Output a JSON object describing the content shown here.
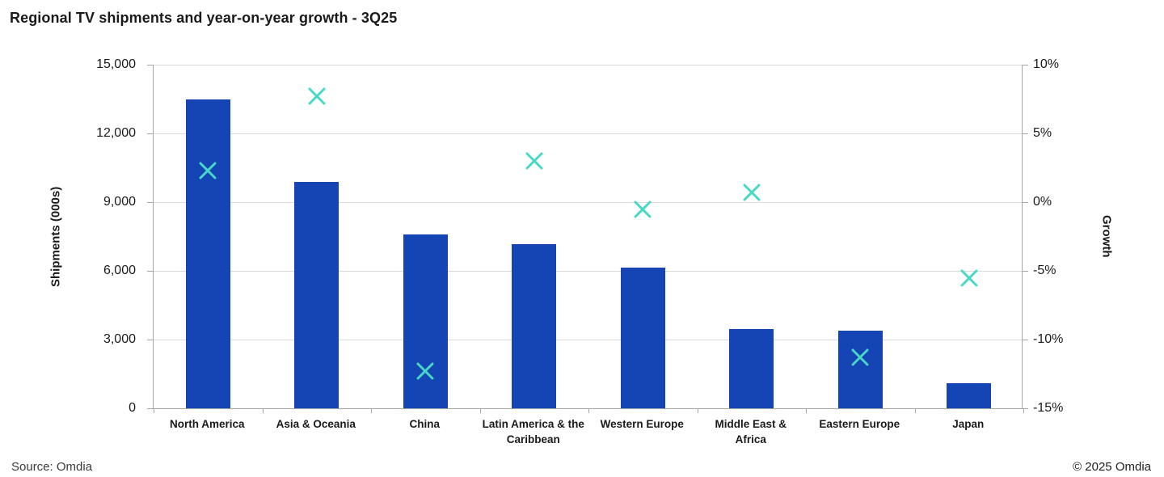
{
  "title": "Regional TV shipments and year-on-year growth - 3Q25",
  "footer": {
    "source": "Source: Omdia",
    "copyright": "© 2025 Omdia"
  },
  "colors": {
    "bar": "#1545b5",
    "marker": "#48d8c6",
    "gridline": "#d9d9d9",
    "axis_line": "#a6a6a6",
    "text": "#1a1a1a"
  },
  "chart_data": {
    "type": "bar",
    "title": "Regional TV shipments and year-on-year growth - 3Q25",
    "categories": [
      "North America",
      "Asia & Oceania",
      "China",
      "Latin America & the Caribbean",
      "Western Europe",
      "Middle East & Africa",
      "Eastern Europe",
      "Japan"
    ],
    "series": [
      {
        "name": "Shipments (000s)",
        "type": "bar",
        "axis": "left",
        "values": [
          13500,
          9900,
          7600,
          7150,
          6150,
          3450,
          3400,
          1100
        ]
      },
      {
        "name": "Growth",
        "type": "scatter",
        "marker": "x-cross",
        "axis": "right",
        "values": [
          2.3,
          7.7,
          -12.3,
          3.0,
          -0.5,
          0.7,
          -11.3,
          -5.5
        ]
      }
    ],
    "xlabel": "",
    "ylabel_left": "Shipments (000s)",
    "ylabel_right": "Growth",
    "y_left": {
      "min": 0,
      "max": 15000,
      "step": 3000,
      "ticks": [
        "0",
        "3,000",
        "6,000",
        "9,000",
        "12,000",
        "15,000"
      ]
    },
    "y_right": {
      "min": -15,
      "max": 10,
      "step": 5,
      "ticks": [
        "-15%",
        "-10%",
        "-5%",
        "0%",
        "5%",
        "10%"
      ]
    },
    "grid": "horizontal",
    "legend": "none"
  }
}
